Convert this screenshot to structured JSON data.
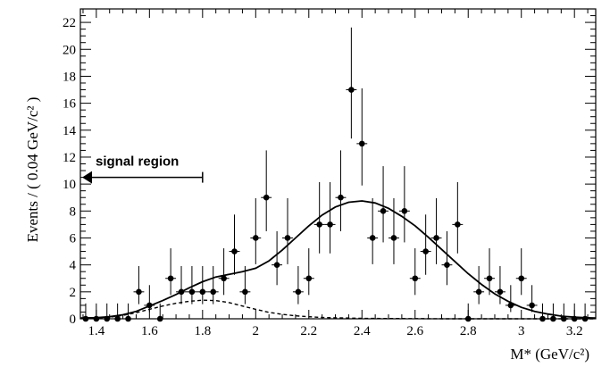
{
  "chart_data": {
    "type": "scatter",
    "title": "",
    "xlabel": "M* (GeV/c²)",
    "ylabel": "Events / ( 0.04 GeV/c² )",
    "xlim": [
      1.34,
      3.28
    ],
    "ylim": [
      0,
      23
    ],
    "x_ticks": [
      1.4,
      1.6,
      1.8,
      2.0,
      2.2,
      2.4,
      2.6,
      2.8,
      3.0,
      3.2
    ],
    "x_tick_labels": [
      "1.4",
      "1.6",
      "1.8",
      "2",
      "2.2",
      "2.4",
      "2.6",
      "2.8",
      "3",
      "3.2"
    ],
    "y_ticks": [
      0,
      2,
      4,
      6,
      8,
      10,
      12,
      14,
      16,
      18,
      20,
      22
    ],
    "y_tick_labels": [
      "0",
      "2",
      "4",
      "6",
      "8",
      "10",
      "12",
      "14",
      "16",
      "18",
      "20",
      "22"
    ],
    "grid": false,
    "annotation": {
      "text": "signal region",
      "arrow_from_x": 1.8,
      "arrow_to_x": 1.34,
      "y": 10.5
    },
    "series": [
      {
        "kind": "data_points_with_errors",
        "bin_width": 0.04,
        "x": [
          1.36,
          1.4,
          1.44,
          1.48,
          1.52,
          1.56,
          1.6,
          1.64,
          1.68,
          1.72,
          1.76,
          1.8,
          1.84,
          1.88,
          1.92,
          1.96,
          2.0,
          2.04,
          2.08,
          2.12,
          2.16,
          2.2,
          2.24,
          2.28,
          2.32,
          2.36,
          2.4,
          2.44,
          2.48,
          2.52,
          2.56,
          2.6,
          2.64,
          2.68,
          2.72,
          2.76,
          2.8,
          2.84,
          2.88,
          2.92,
          2.96,
          3.0,
          3.04,
          3.08,
          3.12,
          3.16,
          3.2,
          3.24
        ],
        "y": [
          0,
          0,
          0,
          0,
          0,
          2,
          1,
          0,
          3,
          2,
          2,
          2,
          2,
          3,
          5,
          2,
          6,
          9,
          4,
          6,
          2,
          3,
          7,
          7,
          9,
          17,
          13,
          6,
          8,
          6,
          8,
          3,
          5,
          6,
          4,
          7,
          0,
          2,
          3,
          2,
          1,
          3,
          1,
          0,
          0,
          0,
          0,
          0
        ]
      },
      {
        "kind": "total_fit",
        "line_style": "solid",
        "x": [
          1.34,
          1.4,
          1.45,
          1.5,
          1.55,
          1.6,
          1.65,
          1.7,
          1.75,
          1.8,
          1.85,
          1.9,
          1.95,
          2.0,
          2.05,
          2.1,
          2.15,
          2.2,
          2.25,
          2.3,
          2.35,
          2.4,
          2.45,
          2.5,
          2.55,
          2.6,
          2.65,
          2.7,
          2.75,
          2.8,
          2.85,
          2.9,
          2.95,
          3.0,
          3.05,
          3.1,
          3.15,
          3.2,
          3.25,
          3.28
        ],
        "y": [
          0.05,
          0.08,
          0.15,
          0.3,
          0.55,
          0.95,
          1.35,
          1.8,
          2.3,
          2.75,
          3.1,
          3.3,
          3.5,
          3.75,
          4.3,
          5.1,
          6.0,
          6.9,
          7.7,
          8.3,
          8.65,
          8.75,
          8.6,
          8.2,
          7.6,
          6.9,
          6.05,
          5.15,
          4.25,
          3.35,
          2.55,
          1.85,
          1.3,
          0.85,
          0.55,
          0.35,
          0.2,
          0.12,
          0.07,
          0.05
        ]
      },
      {
        "kind": "background_component",
        "line_style": "dashed",
        "x": [
          1.34,
          1.4,
          1.45,
          1.5,
          1.55,
          1.6,
          1.65,
          1.7,
          1.75,
          1.8,
          1.85,
          1.9,
          1.95,
          2.0,
          2.05,
          2.1,
          2.15,
          2.2,
          2.25,
          2.3,
          2.35,
          2.4,
          2.5,
          2.6,
          2.7,
          2.8,
          2.9,
          3.0,
          3.1,
          3.2,
          3.28
        ],
        "y": [
          0.02,
          0.05,
          0.12,
          0.25,
          0.45,
          0.7,
          0.95,
          1.15,
          1.3,
          1.38,
          1.35,
          1.2,
          0.95,
          0.7,
          0.48,
          0.33,
          0.22,
          0.15,
          0.1,
          0.07,
          0.05,
          0.03,
          0.02,
          0.01,
          0,
          0,
          0,
          0,
          0,
          0,
          0
        ]
      }
    ]
  }
}
